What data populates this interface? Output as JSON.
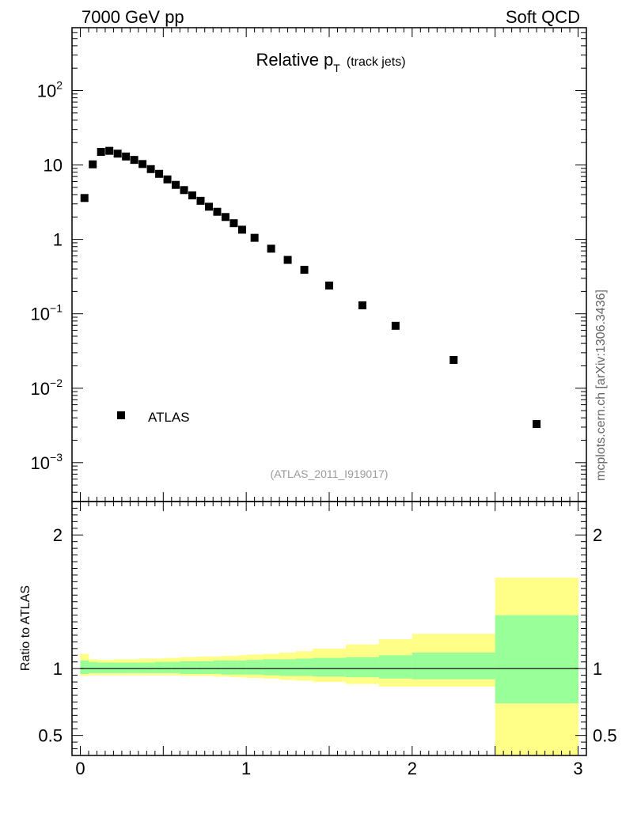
{
  "header": {
    "left": "7000 GeV pp",
    "right": "Soft QCD"
  },
  "side_label": "mcplots.cern.ch [arXiv:1306.3436]",
  "analysis_ref": "(ATLAS_2011_I919017)",
  "colors": {
    "marker": "#000000",
    "band_inner": "#99ff99",
    "band_outer": "#ffff88",
    "axis": "#000000"
  },
  "chart_data": [
    {
      "type": "scatter",
      "title": "Relative p",
      "title_sub": "T",
      "title_suffix": "(track jets)",
      "xlabel": "",
      "ylabel": "",
      "yscale": "log",
      "xlim": [
        -0.05,
        3.05
      ],
      "ylim": [
        0.0003,
        700
      ],
      "y_ticks": [
        {
          "value": 0.001,
          "base": "10",
          "exp": "−3"
        },
        {
          "value": 0.01,
          "base": "10",
          "exp": "−2"
        },
        {
          "value": 0.1,
          "base": "10",
          "exp": "−1"
        },
        {
          "value": 1,
          "base": "1",
          "exp": ""
        },
        {
          "value": 10,
          "base": "10",
          "exp": ""
        },
        {
          "value": 100,
          "base": "10",
          "exp": "2"
        }
      ],
      "legend": {
        "label": "ATLAS",
        "position": "bottom-left"
      },
      "series": [
        {
          "name": "ATLAS",
          "x": [
            0.025,
            0.075,
            0.125,
            0.175,
            0.225,
            0.275,
            0.325,
            0.375,
            0.425,
            0.475,
            0.525,
            0.575,
            0.625,
            0.675,
            0.725,
            0.775,
            0.825,
            0.875,
            0.925,
            0.975,
            1.05,
            1.15,
            1.25,
            1.35,
            1.5,
            1.7,
            1.9,
            2.25,
            2.75
          ],
          "y": [
            3.6,
            10.2,
            15.0,
            15.5,
            14.2,
            13.0,
            11.7,
            10.3,
            8.8,
            7.6,
            6.4,
            5.4,
            4.6,
            3.9,
            3.3,
            2.75,
            2.35,
            2.0,
            1.65,
            1.35,
            1.05,
            0.75,
            0.53,
            0.39,
            0.24,
            0.13,
            0.069,
            0.024,
            0.0033
          ]
        }
      ]
    },
    {
      "type": "area",
      "title": "",
      "xlabel": "",
      "ylabel": "Ratio to ATLAS",
      "xlim": [
        -0.05,
        3.05
      ],
      "ylim": [
        0.35,
        2.25
      ],
      "x_ticks": [
        "0",
        "1",
        "2",
        "3"
      ],
      "y_ticks": [
        "0.5",
        "1",
        "2"
      ],
      "reference_line": 1,
      "bins": {
        "lo": [
          0.0,
          0.05,
          0.1,
          0.15,
          0.2,
          0.25,
          0.3,
          0.35,
          0.4,
          0.45,
          0.5,
          0.55,
          0.6,
          0.65,
          0.7,
          0.75,
          0.8,
          0.85,
          0.9,
          0.95,
          1.0,
          1.1,
          1.2,
          1.3,
          1.4,
          1.6,
          1.8,
          2.0,
          2.5
        ],
        "hi": [
          0.05,
          0.1,
          0.15,
          0.2,
          0.25,
          0.3,
          0.35,
          0.4,
          0.45,
          0.5,
          0.55,
          0.6,
          0.65,
          0.7,
          0.75,
          0.8,
          0.85,
          0.9,
          0.95,
          1.0,
          1.1,
          1.2,
          1.3,
          1.4,
          1.6,
          1.8,
          2.0,
          2.5,
          3.0
        ],
        "inner_up": [
          1.06,
          1.05,
          1.045,
          1.045,
          1.045,
          1.045,
          1.045,
          1.045,
          1.045,
          1.05,
          1.05,
          1.05,
          1.055,
          1.055,
          1.055,
          1.055,
          1.06,
          1.06,
          1.06,
          1.06,
          1.065,
          1.07,
          1.07,
          1.075,
          1.08,
          1.085,
          1.1,
          1.12,
          1.4
        ],
        "inner_down": [
          0.96,
          0.965,
          0.965,
          0.965,
          0.965,
          0.965,
          0.965,
          0.965,
          0.965,
          0.965,
          0.965,
          0.965,
          0.96,
          0.96,
          0.96,
          0.96,
          0.96,
          0.955,
          0.955,
          0.955,
          0.955,
          0.95,
          0.945,
          0.945,
          0.94,
          0.935,
          0.925,
          0.92,
          0.74
        ],
        "outer_up": [
          1.11,
          1.07,
          1.065,
          1.065,
          1.07,
          1.07,
          1.07,
          1.075,
          1.075,
          1.075,
          1.08,
          1.08,
          1.085,
          1.085,
          1.09,
          1.09,
          1.09,
          1.095,
          1.095,
          1.1,
          1.105,
          1.11,
          1.12,
          1.13,
          1.15,
          1.18,
          1.22,
          1.26,
          1.68
        ],
        "outer_down": [
          0.945,
          0.95,
          0.95,
          0.95,
          0.95,
          0.95,
          0.95,
          0.95,
          0.95,
          0.95,
          0.95,
          0.95,
          0.945,
          0.945,
          0.945,
          0.945,
          0.94,
          0.94,
          0.935,
          0.935,
          0.93,
          0.925,
          0.915,
          0.91,
          0.9,
          0.885,
          0.865,
          0.865,
          0.35
        ]
      }
    }
  ]
}
